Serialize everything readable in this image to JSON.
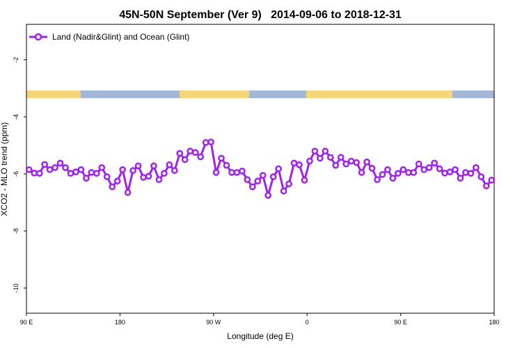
{
  "chart_data": {
    "type": "line",
    "title": "45N-50N September (Ver 9)   2014-09-06 to 2018-12-31",
    "x_label": "Longitude (deg E)",
    "y_label": "XCO2 - MLO trend (ppm)",
    "x": [
      92.5,
      97.5,
      102.5,
      107.5,
      112.5,
      117.5,
      122.5,
      127.5,
      132.5,
      137.5,
      142.5,
      147.5,
      152.5,
      157.5,
      162.5,
      167.5,
      172.5,
      177.5,
      182.5,
      187.5,
      192.5,
      197.5,
      202.5,
      207.5,
      212.5,
      217.5,
      222.5,
      227.5,
      232.5,
      237.5,
      242.5,
      247.5,
      252.5,
      257.5,
      262.5,
      267.5,
      272.5,
      277.5,
      282.5,
      287.5,
      292.5,
      297.5,
      302.5,
      307.5,
      312.5,
      317.5,
      322.5,
      327.5,
      332.5,
      337.5,
      342.5,
      347.5,
      352.5,
      357.5,
      362.5,
      367.5,
      372.5,
      377.5,
      382.5,
      387.5,
      392.5,
      397.5,
      402.5,
      407.5,
      412.5,
      417.5,
      422.5,
      427.5,
      432.5,
      437.5,
      442.5,
      447.5,
      452.5,
      457.5,
      462.5,
      467.5,
      472.5,
      477.5,
      482.5,
      487.5,
      492.5,
      497.5,
      502.5,
      507.5,
      512.5,
      517.5,
      522.5,
      527.5,
      532.5,
      537.5
    ],
    "series": [
      {
        "name": "Land (Nadir&Glint) and Ocean (Glint)",
        "color": "#a020f0",
        "values": [
          -5.85,
          -5.97,
          -5.98,
          -5.67,
          -5.85,
          -5.78,
          -5.62,
          -5.78,
          -5.98,
          -5.93,
          -5.85,
          -6.15,
          -5.95,
          -5.98,
          -5.78,
          -6.1,
          -6.45,
          -6.25,
          -5.85,
          -6.65,
          -5.88,
          -5.72,
          -6.12,
          -6.08,
          -5.72,
          -6.2,
          -5.98,
          -5.68,
          -5.88,
          -5.28,
          -5.5,
          -5.2,
          -5.25,
          -5.4,
          -4.9,
          -4.88,
          -5.95,
          -5.45,
          -5.7,
          -5.95,
          -5.95,
          -5.9,
          -6.2,
          -6.45,
          -6.25,
          -6.05,
          -6.75,
          -6.1,
          -5.82,
          -6.6,
          -6.35,
          -5.62,
          -5.68,
          -6.22,
          -5.55,
          -5.2,
          -5.45,
          -5.2,
          -5.42,
          -5.7,
          -5.42,
          -5.65,
          -5.55,
          -5.6,
          -5.95,
          -5.58,
          -5.8,
          -6.2,
          -6.02,
          -5.85,
          -6.15,
          -5.98,
          -5.85,
          -5.95,
          -5.95,
          -5.65,
          -5.85,
          -5.78,
          -5.62,
          -5.82,
          -5.97,
          -5.93,
          -5.85,
          -6.15,
          -5.95,
          -5.98,
          -5.78,
          -6.1,
          -6.42,
          -6.22
        ]
      }
    ],
    "xlim": [
      90,
      540
    ],
    "xticks": [
      {
        "value": 90,
        "label": "90 E"
      },
      180,
      {
        "value": 270,
        "label": "90 W"
      },
      {
        "value": 360,
        "label": "0"
      },
      {
        "value": 450,
        "label": "90 E"
      },
      {
        "value": 540,
        "label": "180"
      }
    ],
    "ylim": [
      -10.88,
      -0.76
    ],
    "yticks": [
      -2,
      -4,
      -6,
      -8,
      -10
    ],
    "legend": "top-left"
  }
}
